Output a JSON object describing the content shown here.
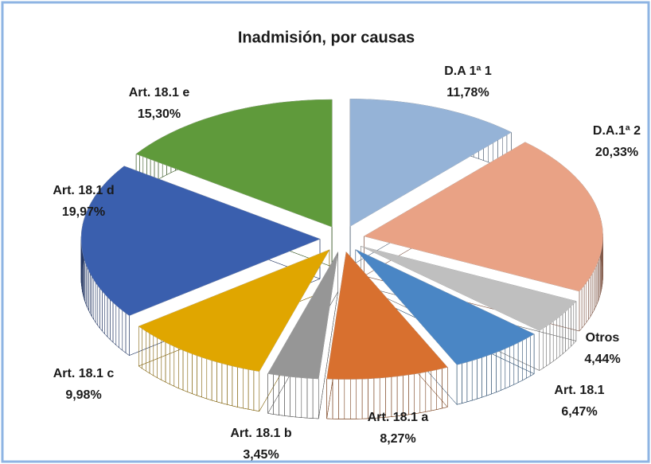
{
  "chart_data": {
    "type": "pie3d",
    "title": "Inadmisión, por causas",
    "categories": [
      "D.A 1ª 1",
      "D.A.1ª 2",
      "Otros",
      "Art. 18.1",
      "Art. 18.1 a",
      "Art. 18.1 b",
      "Art. 18.1 c",
      "Art. 18.1 d",
      "Art. 18.1 e"
    ],
    "values": [
      11.78,
      20.33,
      4.44,
      6.47,
      8.27,
      3.45,
      9.98,
      19.97,
      15.3
    ],
    "value_labels": [
      "11,78%",
      "20,33%",
      "4,44%",
      "6,47%",
      "8,27%",
      "3,45%",
      "9,98%",
      "19,97%",
      "15,30%"
    ],
    "colors": [
      "#95b3d7",
      "#e9a285",
      "#bfbfbf",
      "#4a86c5",
      "#d8702f",
      "#969696",
      "#e0a600",
      "#3a5fae",
      "#5f9a3b"
    ]
  }
}
